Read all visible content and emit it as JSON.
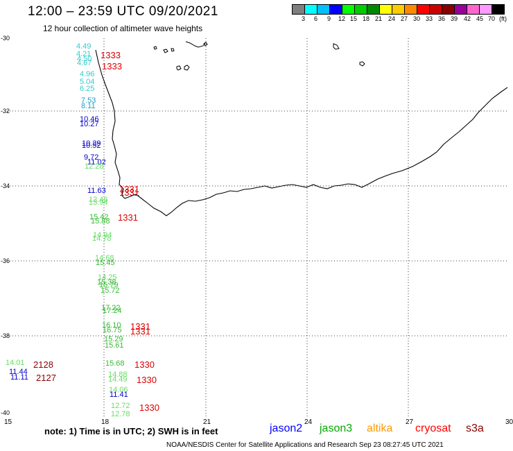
{
  "header": {
    "title": "12:00  – 23:59 UTC 09/20/2021",
    "subtitle": "12 hour collection of altimeter wave heights"
  },
  "color_scale": {
    "colors": [
      "#7f7f7f",
      "#00ffff",
      "#00bfff",
      "#0000ff",
      "#00ff00",
      "#00cc00",
      "#008800",
      "#ffff00",
      "#ffcc00",
      "#ff8800",
      "#ff0000",
      "#cc0000",
      "#880000",
      "#990099",
      "#ff66cc",
      "#ff99ff",
      "#000000"
    ],
    "labels": [
      "3",
      "6",
      "9",
      "12",
      "15",
      "18",
      "21",
      "24",
      "27",
      "30",
      "33",
      "36",
      "39",
      "42",
      "45",
      "70",
      "(ft)"
    ]
  },
  "axes": {
    "lat_labels": [
      "-30",
      "-32",
      "-34",
      "-36",
      "-38",
      "-40"
    ],
    "lon_labels": [
      "15",
      "18",
      "21",
      "24",
      "27",
      "30"
    ]
  },
  "observations": [
    {
      "text": "4.49",
      "color": "#33cccc"
    },
    {
      "text": "4.21",
      "color": "#33cccc"
    },
    {
      "text": "4.50",
      "color": "#33cccc"
    },
    {
      "text": "4.67",
      "color": "#33cccc"
    },
    {
      "text": "4.96",
      "color": "#33cccc"
    },
    {
      "text": "5.04",
      "color": "#33cccc"
    },
    {
      "text": "6.25",
      "color": "#33cccc"
    },
    {
      "text": "7.53",
      "color": "#1a9fcc"
    },
    {
      "text": "8.11",
      "color": "#1a9fcc"
    },
    {
      "text": "10.46",
      "color": "#0000cc"
    },
    {
      "text": "10.27",
      "color": "#0000cc"
    },
    {
      "text": "10.39",
      "color": "#0000cc"
    },
    {
      "text": "10.52",
      "color": "#0000cc"
    },
    {
      "text": "9.72",
      "color": "#0000cc"
    },
    {
      "text": "11.02",
      "color": "#0000cc"
    },
    {
      "text": "12.28",
      "color": "#66dd66"
    },
    {
      "text": "11.63",
      "color": "#0000cc"
    },
    {
      "text": "12.46",
      "color": "#66dd66"
    },
    {
      "text": "13.94",
      "color": "#66dd66"
    },
    {
      "text": "15.42",
      "color": "#33bb33"
    },
    {
      "text": "15.88",
      "color": "#33bb33"
    },
    {
      "text": "14.94",
      "color": "#66dd66"
    },
    {
      "text": "14.78",
      "color": "#66dd66"
    },
    {
      "text": "14.68",
      "color": "#66dd66"
    },
    {
      "text": "15.45",
      "color": "#33bb33"
    },
    {
      "text": "14.25",
      "color": "#66dd66"
    },
    {
      "text": "15.38",
      "color": "#33bb33"
    },
    {
      "text": "15.79",
      "color": "#33bb33"
    },
    {
      "text": "15.72",
      "color": "#33bb33"
    },
    {
      "text": "17.22",
      "color": "#33bb33"
    },
    {
      "text": "17.24",
      "color": "#33bb33"
    },
    {
      "text": "16.10",
      "color": "#33bb33"
    },
    {
      "text": "16.75",
      "color": "#33bb33"
    },
    {
      "text": "15.29",
      "color": "#33bb33"
    },
    {
      "text": "15.61",
      "color": "#33bb33"
    },
    {
      "text": "15.68",
      "color": "#33bb33"
    },
    {
      "text": "14.88",
      "color": "#66dd66"
    },
    {
      "text": "14.49",
      "color": "#66dd66"
    },
    {
      "text": "14.06",
      "color": "#66dd66"
    },
    {
      "text": "11.41",
      "color": "#0000cc"
    },
    {
      "text": "12.72",
      "color": "#66dd66"
    },
    {
      "text": "12.78",
      "color": "#66dd66"
    },
    {
      "text": "14.01",
      "color": "#66dd66"
    },
    {
      "text": "11.44",
      "color": "#0000cc"
    },
    {
      "text": "11.11",
      "color": "#0000cc"
    }
  ],
  "time_tags": [
    {
      "text": "1333",
      "color": "#dd0000"
    },
    {
      "text": "1333",
      "color": "#dd0000"
    },
    {
      "text": "1331",
      "color": "#dd0000"
    },
    {
      "text": "1331",
      "color": "#dd0000"
    },
    {
      "text": "1331",
      "color": "#dd0000"
    },
    {
      "text": "1331",
      "color": "#dd0000"
    },
    {
      "text": "1331",
      "color": "#dd0000"
    },
    {
      "text": "1330",
      "color": "#dd0000"
    },
    {
      "text": "1330",
      "color": "#dd0000"
    },
    {
      "text": "1330",
      "color": "#dd0000"
    },
    {
      "text": "2128",
      "color": "#880000"
    },
    {
      "text": "2127",
      "color": "#880000"
    }
  ],
  "footer": {
    "note": "note:  1) Time is in UTC;  2) SWH is in feet",
    "legend": [
      {
        "text": "jason2",
        "color": "#0000ff"
      },
      {
        "text": "jason3",
        "color": "#00aa00"
      },
      {
        "text": "altika",
        "color": "#ff9900"
      },
      {
        "text": "cryosat",
        "color": "#ff0000"
      },
      {
        "text": "s3a",
        "color": "#880000"
      }
    ],
    "credit": "NOAA/NESDIS Center for Satellite Applications and Research    Sep 23 08:27:45 UTC 2021"
  }
}
